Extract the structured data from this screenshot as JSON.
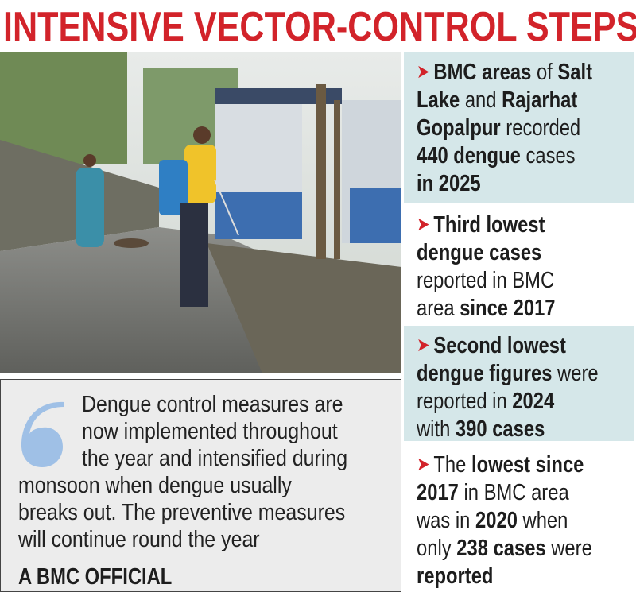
{
  "title": "INTENSIVE VECTOR-CONTROL STEPS",
  "colors": {
    "accent_red": "#d2232a",
    "panel_blue": "#d5e7e9",
    "quote_bg": "#ececec",
    "quote_mark": "#9fc0e6"
  },
  "photo": {
    "description_icon": "photo-man-spraying-insecticide-street"
  },
  "facts": [
    {
      "bg": "blue",
      "lines": [
        [
          {
            "t": "BMC areas",
            "b": true
          },
          {
            "t": " of ",
            "b": false
          },
          {
            "t": "Salt",
            "b": true
          }
        ],
        [
          {
            "t": "Lake",
            "b": true
          },
          {
            "t": " and ",
            "b": false
          },
          {
            "t": "Rajarhat",
            "b": true
          }
        ],
        [
          {
            "t": "Gopalpur",
            "b": true
          },
          {
            "t": " recorded",
            "b": false
          }
        ],
        [
          {
            "t": "440 dengue",
            "b": true
          },
          {
            "t": " cases",
            "b": false
          }
        ],
        [
          {
            "t": "in 2025",
            "b": true
          }
        ]
      ]
    },
    {
      "bg": "white",
      "lines": [
        [
          {
            "t": "Third lowest",
            "b": true
          }
        ],
        [
          {
            "t": "dengue cases",
            "b": true
          }
        ],
        [
          {
            "t": "reported in BMC",
            "b": false
          }
        ],
        [
          {
            "t": "area ",
            "b": false
          },
          {
            "t": "since 2017",
            "b": true
          }
        ]
      ]
    },
    {
      "bg": "blue",
      "lines": [
        [
          {
            "t": "Second lowest",
            "b": true
          }
        ],
        [
          {
            "t": "dengue figures",
            "b": true
          },
          {
            "t": " were",
            "b": false
          }
        ],
        [
          {
            "t": "reported in ",
            "b": false
          },
          {
            "t": "2024",
            "b": true
          }
        ],
        [
          {
            "t": "with ",
            "b": false
          },
          {
            "t": "390 cases",
            "b": true
          }
        ]
      ]
    },
    {
      "bg": "white",
      "lines": [
        [
          {
            "t": "The ",
            "b": false
          },
          {
            "t": "lowest since",
            "b": true
          }
        ],
        [
          {
            "t": "2017",
            "b": true
          },
          {
            "t": " in BMC area",
            "b": false
          }
        ],
        [
          {
            "t": "was in ",
            "b": false
          },
          {
            "t": "2020",
            "b": true
          },
          {
            "t": " when",
            "b": false
          }
        ],
        [
          {
            "t": "only ",
            "b": false
          },
          {
            "t": "238 cases",
            "b": true
          },
          {
            "t": " were",
            "b": false
          }
        ],
        [
          {
            "t": "reported",
            "b": true
          }
        ]
      ]
    }
  ],
  "quote": {
    "lines": [
      "Dengue control measures are",
      "now implemented throughout",
      "the year and intensified during",
      "monsoon when dengue usually",
      "breaks out. The preventive measures",
      "will continue round the year"
    ],
    "attribution": "A BMC OFFICIAL"
  }
}
